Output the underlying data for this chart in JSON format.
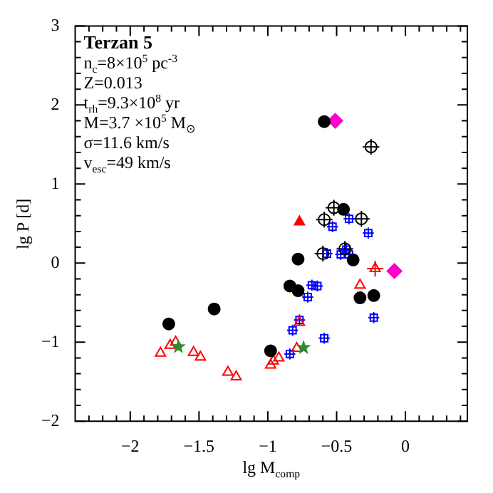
{
  "chart_data": {
    "type": "scatter",
    "xlabel": "lg M$_{comp}$",
    "ylabel": "lg P [d]",
    "title": "Terzan 5",
    "annotations": [
      "n$_{c}$=8×10$^{5}$ pc$^{-3}$",
      "Z=0.013",
      "t$_{rh}$=9.3×10$^{8}$ yr",
      "M=3.7 ×10$^{5}$ M$_{⊙}$",
      "σ=11.6 km/s",
      "v$_{esc}$=49 km/s"
    ],
    "xlim": [
      -2.4,
      0.45
    ],
    "ylim": [
      -2,
      3
    ],
    "xticks": [
      {
        "value": -2.3,
        "label": null
      },
      {
        "value": -2.2,
        "label": null
      },
      {
        "value": -2.1,
        "label": null
      },
      {
        "value": -2,
        "label": "−2"
      },
      {
        "value": -1.9,
        "label": null
      },
      {
        "value": -1.8,
        "label": null
      },
      {
        "value": -1.7,
        "label": null
      },
      {
        "value": -1.6,
        "label": null
      },
      {
        "value": -1.5,
        "label": "−1.5"
      },
      {
        "value": -1.4,
        "label": null
      },
      {
        "value": -1.3,
        "label": null
      },
      {
        "value": -1.2,
        "label": null
      },
      {
        "value": -1.1,
        "label": null
      },
      {
        "value": -1,
        "label": "−1"
      },
      {
        "value": -0.9,
        "label": null
      },
      {
        "value": -0.8,
        "label": null
      },
      {
        "value": -0.7,
        "label": null
      },
      {
        "value": -0.6,
        "label": null
      },
      {
        "value": -0.5,
        "label": "−0.5"
      },
      {
        "value": -0.4,
        "label": null
      },
      {
        "value": -0.3,
        "label": null
      },
      {
        "value": -0.2,
        "label": null
      },
      {
        "value": -0.1,
        "label": null
      },
      {
        "value": 0,
        "label": "0"
      },
      {
        "value": 0.1,
        "label": null
      },
      {
        "value": 0.2,
        "label": null
      },
      {
        "value": 0.3,
        "label": null
      },
      {
        "value": 0.4,
        "label": null
      }
    ],
    "yticks": [
      {
        "value": -2,
        "label": "−2"
      },
      {
        "value": -1.8,
        "label": null
      },
      {
        "value": -1.6,
        "label": null
      },
      {
        "value": -1.4,
        "label": null
      },
      {
        "value": -1.2,
        "label": null
      },
      {
        "value": -1,
        "label": "−1"
      },
      {
        "value": -0.8,
        "label": null
      },
      {
        "value": -0.6,
        "label": null
      },
      {
        "value": -0.4,
        "label": null
      },
      {
        "value": -0.2,
        "label": null
      },
      {
        "value": 0,
        "label": "0"
      },
      {
        "value": 0.2,
        "label": null
      },
      {
        "value": 0.4,
        "label": null
      },
      {
        "value": 0.6,
        "label": null
      },
      {
        "value": 0.8,
        "label": null
      },
      {
        "value": 1,
        "label": "1"
      },
      {
        "value": 1.2,
        "label": null
      },
      {
        "value": 1.4,
        "label": null
      },
      {
        "value": 1.6,
        "label": null
      },
      {
        "value": 1.8,
        "label": null
      },
      {
        "value": 2,
        "label": "2"
      },
      {
        "value": 2.2,
        "label": null
      },
      {
        "value": 2.4,
        "label": null
      },
      {
        "value": 2.6,
        "label": null
      },
      {
        "value": 2.8,
        "label": null
      },
      {
        "value": 3,
        "label": "3"
      }
    ],
    "grid": false,
    "legend": false,
    "series": [
      {
        "color": "#000000",
        "marker": "circle",
        "x": [
          -1.72,
          -0.84,
          -0.78,
          -0.45,
          -0.38,
          -0.23,
          -0.59
        ],
        "values": [
          -0.77,
          -0.29,
          -0.35,
          0.68,
          0.04,
          -0.41,
          1.79
        ]
      },
      {
        "color": "#000000",
        "marker": "circle",
        "x": [
          -0.52,
          -0.59,
          -0.32,
          -0.6,
          -0.44,
          -0.25
        ],
        "values": [
          0.7,
          0.55,
          0.56,
          0.12,
          0.18,
          1.47
        ],
        "xerrors": [
          0.06,
          0.06,
          0.06,
          0.06,
          0.06,
          0.06
        ],
        "errors": [
          0.1,
          0.1,
          0.1,
          0.1,
          0.1,
          0.1
        ]
      },
      {
        "color": "#000000",
        "marker": "circle",
        "x": [
          -1.39,
          -0.78,
          -0.98,
          -0.33
        ],
        "values": [
          -0.58,
          0.05,
          -1.11,
          -0.44
        ]
      },
      {
        "color": "#ff0000",
        "marker": "triangle",
        "x": [
          -1.78,
          -1.71,
          -1.67,
          -1.54,
          -1.49,
          -1.29,
          -1.23,
          -0.98,
          -0.96,
          -0.92,
          -0.79,
          -0.77,
          -0.33,
          -0.22
        ],
        "values": [
          -1.14,
          -1.04,
          -1.0,
          -1.13,
          -1.19,
          -1.38,
          -1.44,
          -1.29,
          -1.24,
          -1.2,
          -1.08,
          -0.75,
          -0.28,
          -0.07
        ],
        "xerrors": [
          null,
          null,
          null,
          null,
          null,
          null,
          null,
          null,
          null,
          null,
          null,
          null,
          null,
          0.06
        ],
        "errors": [
          null,
          null,
          null,
          null,
          null,
          null,
          null,
          null,
          null,
          null,
          null,
          null,
          null,
          0.1
        ]
      },
      {
        "color": "#ff0000",
        "marker": "triangle",
        "x": [
          -0.77
        ],
        "values": [
          0.52
        ]
      },
      {
        "color": "#2e8b2e",
        "marker": "star",
        "x": [
          -1.65,
          -0.74
        ],
        "values": [
          -1.06,
          -1.07
        ]
      },
      {
        "color": "#ff00cc",
        "marker": "diamond",
        "x": [
          -0.08,
          -0.51
        ],
        "values": [
          -0.1,
          1.8
        ]
      },
      {
        "color": "#0000ff",
        "marker": "square",
        "x": [
          -0.84,
          -0.82,
          -0.77,
          -0.71,
          -0.68,
          -0.64,
          -0.59,
          -0.57,
          -0.53,
          -0.47,
          -0.43,
          -0.41,
          -0.41,
          -0.27,
          -0.23
        ],
        "values": [
          -1.15,
          -0.85,
          -0.72,
          -0.43,
          -0.28,
          -0.29,
          -0.95,
          0.12,
          0.46,
          0.11,
          0.17,
          0.11,
          0.56,
          0.38,
          -0.69
        ],
        "xerrors": [
          0.04,
          0.04,
          0.04,
          0.04,
          0.04,
          0.04,
          0.04,
          0.04,
          0.04,
          0.04,
          0.04,
          0.04,
          0.04,
          0.04,
          0.04
        ],
        "errors": [
          0.07,
          0.07,
          0.07,
          0.07,
          0.07,
          0.07,
          0.07,
          0.07,
          0.07,
          0.07,
          0.07,
          0.07,
          0.07,
          0.07,
          0.07
        ]
      }
    ]
  }
}
